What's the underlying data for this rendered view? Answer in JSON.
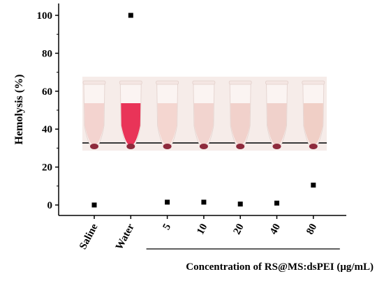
{
  "chart_data": {
    "type": "scatter",
    "title": "",
    "ylabel": "Hemolysis (%)",
    "xlabel": "Concentration of RS@MS:dsPEI (μg/mL)",
    "ylim": [
      -5,
      107
    ],
    "yticks": [
      0,
      20,
      40,
      60,
      80,
      100
    ],
    "categories": [
      "Saline",
      "Water",
      "5",
      "10",
      "20",
      "40",
      "80"
    ],
    "values": [
      0,
      100,
      1.5,
      1.5,
      0.5,
      1.0,
      10.5
    ],
    "concentration_bracket": [
      "5",
      "10",
      "20",
      "40",
      "80"
    ],
    "grid": false,
    "legend": "none"
  },
  "inset": {
    "liquid_colors": [
      "#f2d1cc",
      "#e8294f",
      "#f3d4cd",
      "#f1d2cc",
      "#f0cfc8",
      "#efcfc8",
      "#efccc3"
    ],
    "pellet_color": "#8e2a3c"
  }
}
